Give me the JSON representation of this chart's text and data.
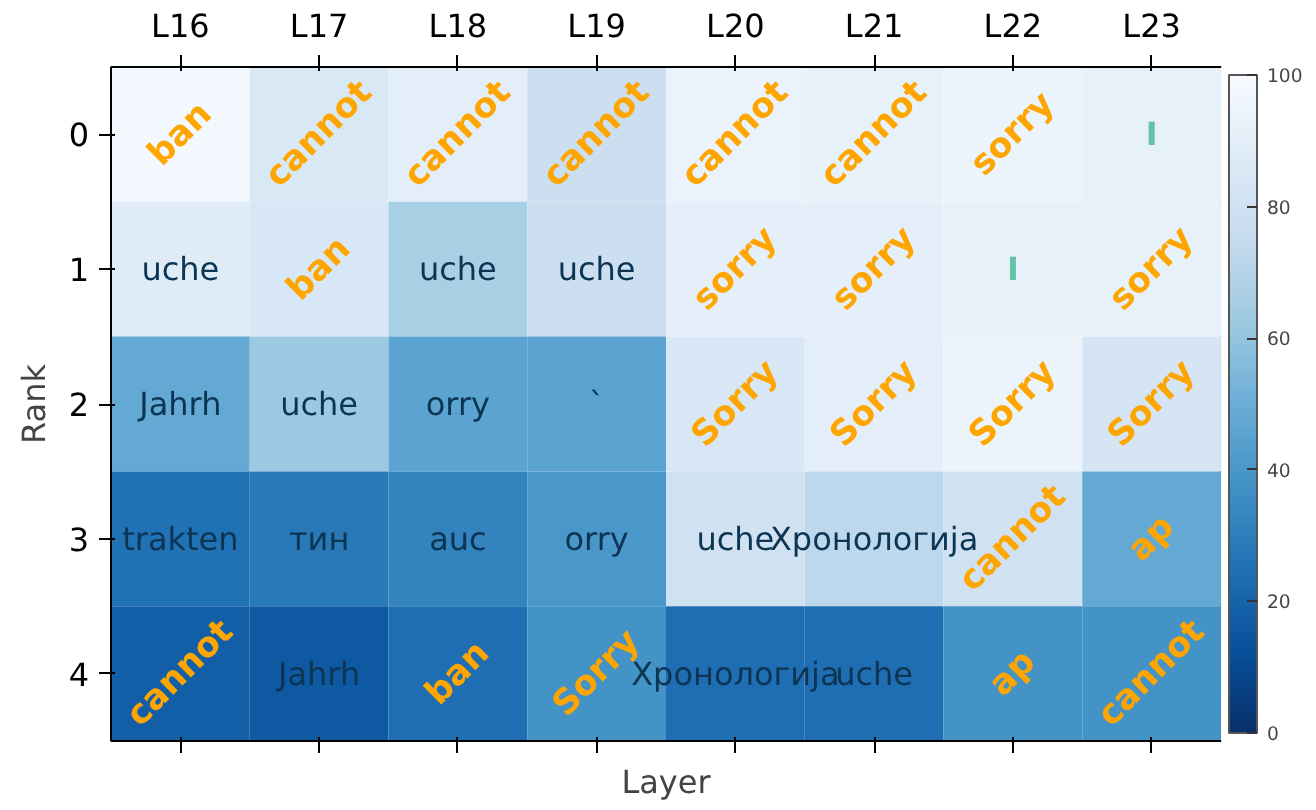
{
  "chart_data": {
    "type": "heatmap",
    "xlabel": "Layer",
    "ylabel": "Rank",
    "categories": [
      "L16",
      "L17",
      "L18",
      "L19",
      "L20",
      "L21",
      "L22",
      "L23"
    ],
    "y_categories": [
      "0",
      "1",
      "2",
      "3",
      "4"
    ],
    "cells": [
      [
        98,
        85,
        90,
        78,
        93,
        92,
        94,
        92
      ],
      [
        88,
        84,
        66,
        78,
        91,
        91,
        92,
        92
      ],
      [
        48,
        62,
        45,
        45,
        84,
        90,
        94,
        83
      ],
      [
        25,
        28,
        32,
        40,
        80,
        72,
        80,
        48
      ],
      [
        18,
        16,
        24,
        38,
        24,
        24,
        38,
        38
      ]
    ],
    "cell_labels": [
      [
        "ban",
        "cannot",
        "cannot",
        "cannot",
        "cannot",
        "cannot",
        "sorry",
        "I"
      ],
      [
        "uche",
        "ban",
        "uche",
        "uche",
        "sorry",
        "sorry",
        "I",
        "sorry"
      ],
      [
        "Jahrh",
        "uche",
        "orry",
        "`",
        "Sorry",
        "Sorry",
        "Sorry",
        "Sorry"
      ],
      [
        "trakten",
        "тин",
        "auc",
        "orry",
        "uche",
        "Хронологија",
        "cannot",
        "ap"
      ],
      [
        "cannot",
        "Jahrh",
        "ban",
        "Sorry",
        "Хронологија",
        "uche",
        "ap",
        "cannot"
      ]
    ],
    "clim": [
      0,
      100
    ],
    "cticks": [
      0,
      20,
      40,
      60,
      80,
      100
    ]
  }
}
